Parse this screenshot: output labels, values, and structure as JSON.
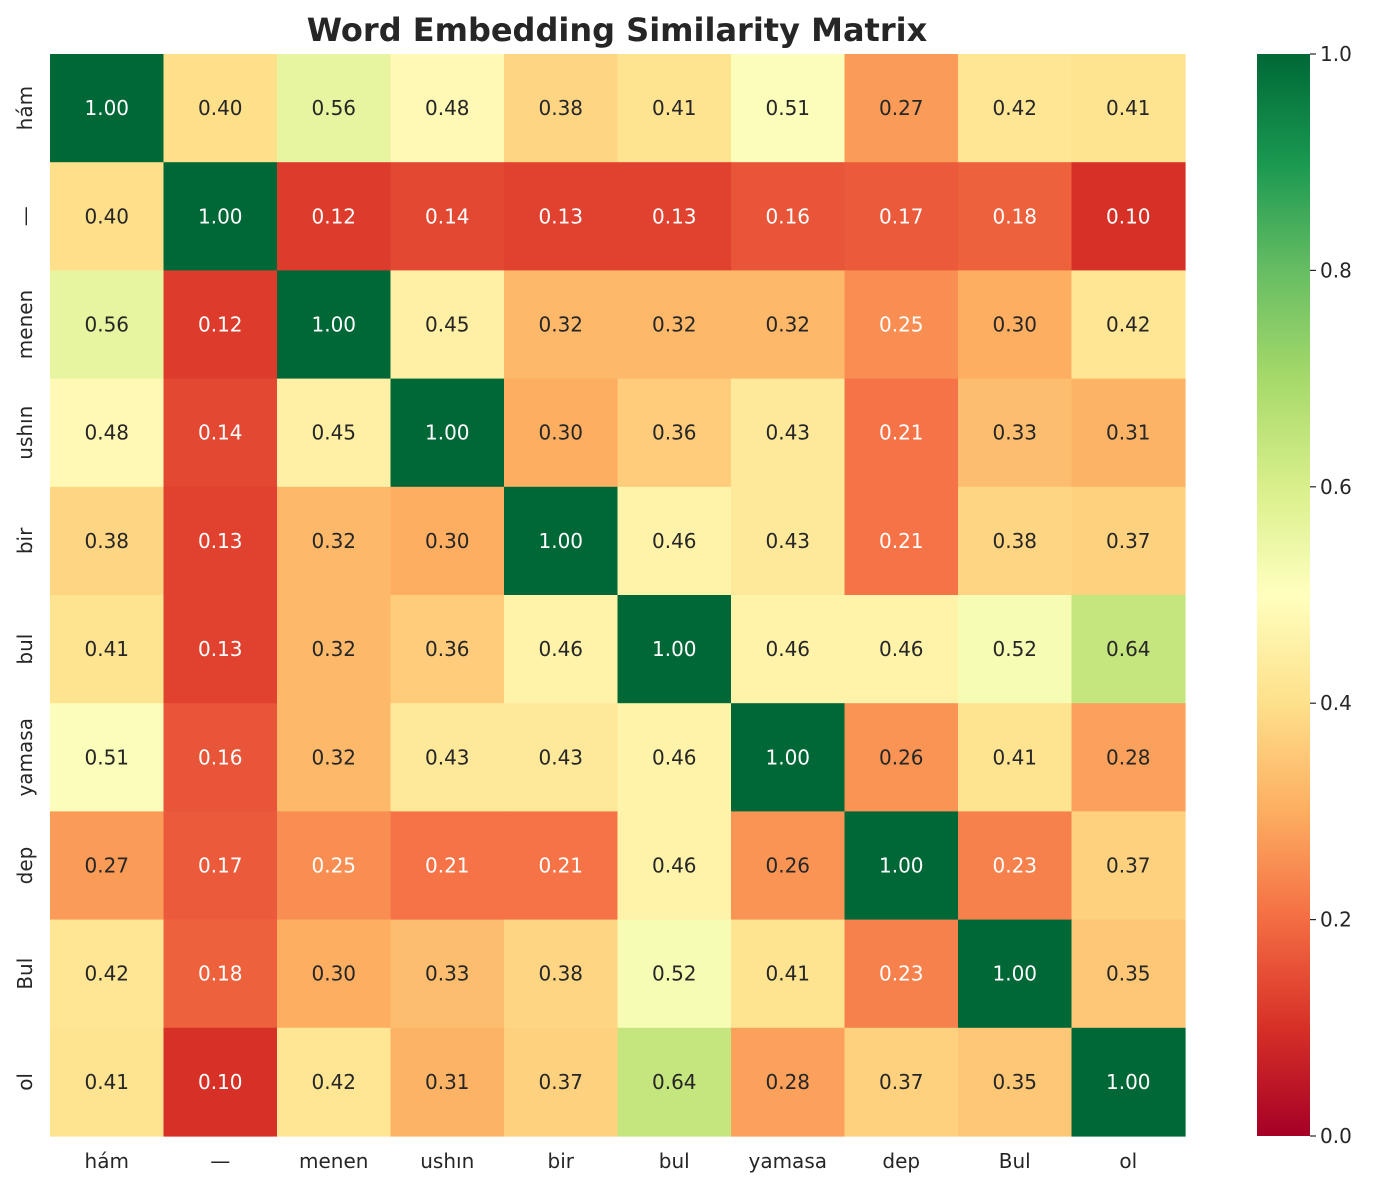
{
  "chart_data": {
    "type": "heatmap",
    "title": "Word Embedding Similarity Matrix",
    "labels": [
      "hám",
      "—",
      "menen",
      "ushın",
      "bir",
      "bul",
      "yamasa",
      "dep",
      "Bul",
      "ol"
    ],
    "matrix": [
      [
        1.0,
        0.4,
        0.56,
        0.48,
        0.38,
        0.41,
        0.51,
        0.27,
        0.42,
        0.41
      ],
      [
        0.4,
        1.0,
        0.12,
        0.14,
        0.13,
        0.13,
        0.16,
        0.17,
        0.18,
        0.1
      ],
      [
        0.56,
        0.12,
        1.0,
        0.45,
        0.32,
        0.32,
        0.32,
        0.25,
        0.3,
        0.42
      ],
      [
        0.48,
        0.14,
        0.45,
        1.0,
        0.3,
        0.36,
        0.43,
        0.21,
        0.33,
        0.31
      ],
      [
        0.38,
        0.13,
        0.32,
        0.3,
        1.0,
        0.46,
        0.43,
        0.21,
        0.38,
        0.37
      ],
      [
        0.41,
        0.13,
        0.32,
        0.36,
        0.46,
        1.0,
        0.46,
        0.46,
        0.52,
        0.64
      ],
      [
        0.51,
        0.16,
        0.32,
        0.43,
        0.43,
        0.46,
        1.0,
        0.26,
        0.41,
        0.28
      ],
      [
        0.27,
        0.17,
        0.25,
        0.21,
        0.21,
        0.46,
        0.26,
        1.0,
        0.23,
        0.37
      ],
      [
        0.42,
        0.18,
        0.3,
        0.33,
        0.38,
        0.52,
        0.41,
        0.23,
        1.0,
        0.35
      ],
      [
        0.41,
        0.1,
        0.42,
        0.31,
        0.37,
        0.64,
        0.28,
        0.37,
        0.35,
        1.0
      ]
    ],
    "value_format": "0.00",
    "colormap": "RdYlGn",
    "vmin": 0.0,
    "vmax": 1.0,
    "colorbar_ticks": [
      "0.0",
      "0.2",
      "0.4",
      "0.6",
      "0.8",
      "1.0"
    ],
    "colorbar_tick_values": [
      0.0,
      0.2,
      0.4,
      0.6,
      0.8,
      1.0
    ],
    "annotate_cells": true,
    "grid": false
  }
}
